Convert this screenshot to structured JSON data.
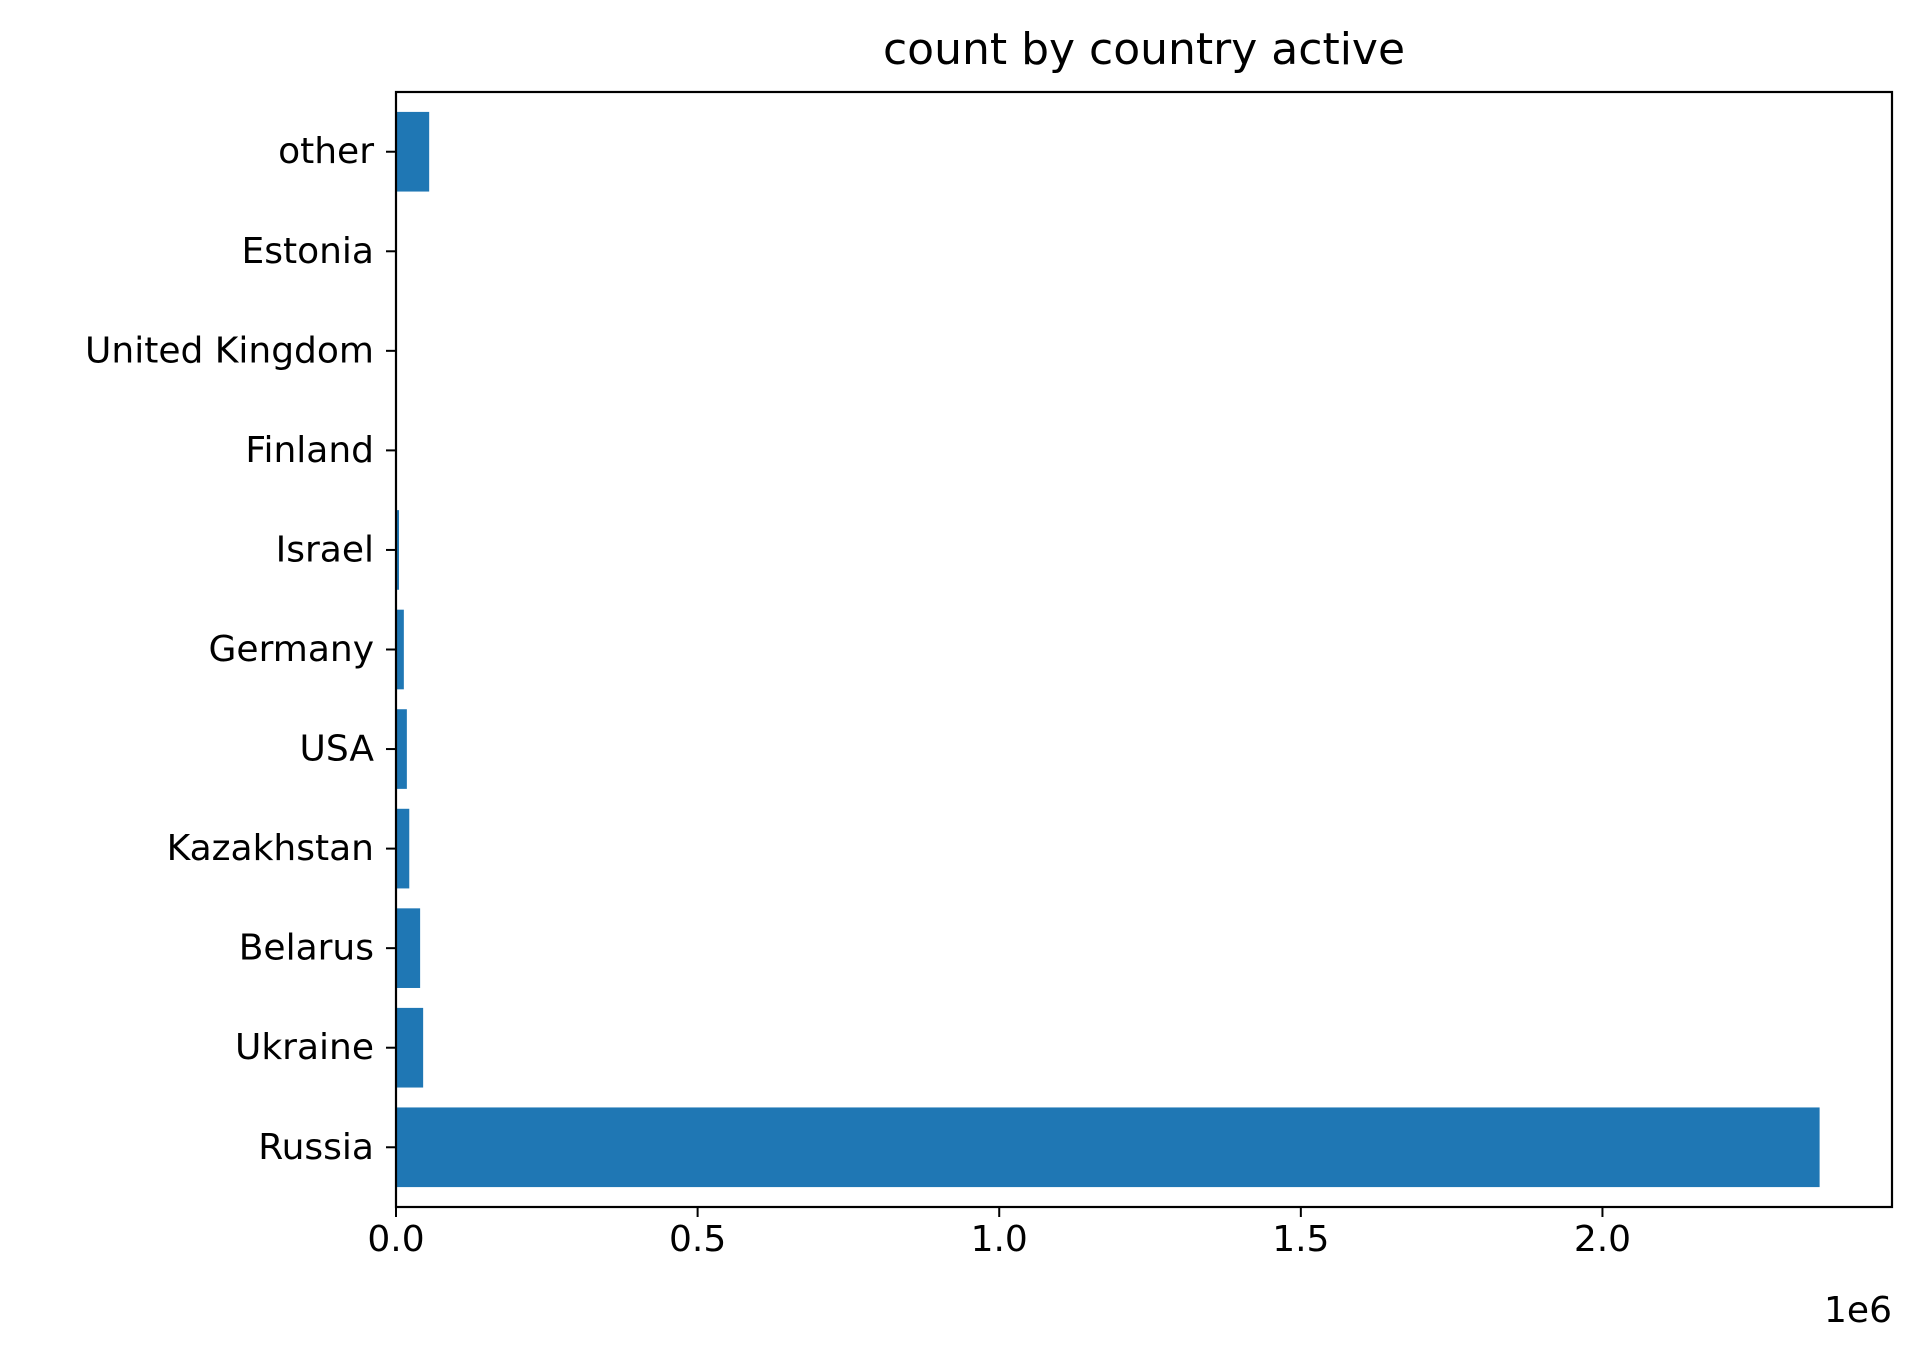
{
  "chart_data": {
    "type": "bar",
    "orientation": "horizontal",
    "title": "count by country active",
    "xlabel": "",
    "ylabel": "",
    "categories": [
      "Russia",
      "Ukraine",
      "Belarus",
      "Kazakhstan",
      "USA",
      "Germany",
      "Israel",
      "Finland",
      "United Kingdom",
      "Estonia",
      "other"
    ],
    "values": [
      2360000,
      45000,
      40000,
      22000,
      18000,
      13000,
      5000,
      1500,
      1200,
      800,
      55000
    ],
    "xlim": [
      0,
      2480000
    ],
    "xticks": [
      0,
      500000,
      1000000,
      1500000,
      2000000
    ],
    "xtick_labels": [
      "0.0",
      "0.5",
      "1.0",
      "1.5",
      "2.0"
    ],
    "offset_label": "1e6",
    "bar_color": "#1f77b4",
    "grid": false,
    "legend": "none"
  }
}
